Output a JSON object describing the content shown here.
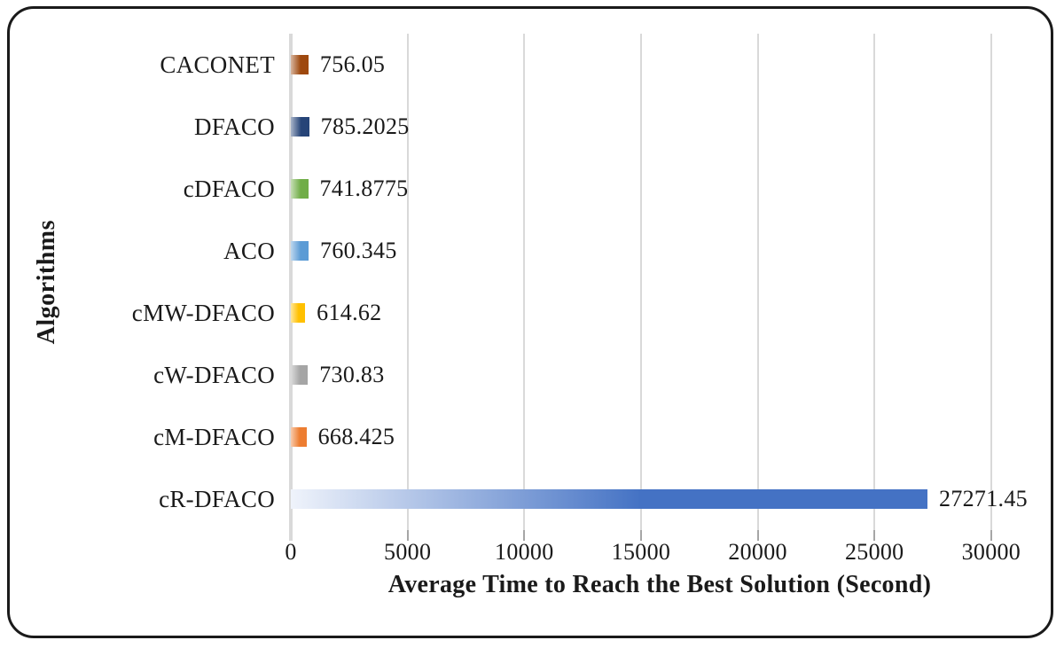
{
  "figure": {
    "frame_border_color": "#1a1a1a",
    "background_color": "#ffffff",
    "text_color": "#1a1a1a"
  },
  "chart_data": {
    "type": "bar",
    "orientation": "horizontal",
    "title": "",
    "xlabel": "Average Time to Reach the Best Solution (Second)",
    "ylabel": "Algorithms",
    "xlim": [
      0,
      31600
    ],
    "xticks": [
      "0",
      "5000",
      "10000",
      "15000",
      "20000",
      "25000",
      "30000"
    ],
    "xtick_values": [
      0,
      5000,
      10000,
      15000,
      20000,
      25000,
      30000
    ],
    "grid": true,
    "legend_position": "none",
    "categories": [
      "CACONET",
      "DFACO",
      "cDFACO",
      "ACO",
      "cMW-DFACO",
      "cW-DFACO",
      "cM-DFACO",
      "cR-DFACO"
    ],
    "values": [
      756.05,
      785.2025,
      741.8775,
      760.345,
      614.62,
      730.83,
      668.425,
      27271.45
    ],
    "value_labels": [
      "756.05",
      "785.2025",
      "741.8775",
      "760.345",
      "614.62",
      "730.83",
      "668.425",
      "27271.45"
    ],
    "bar_colors": [
      "#9E480E",
      "#264478",
      "#70AD47",
      "#5B9BD5",
      "#FFC000",
      "#A5A5A5",
      "#ED7D31",
      "#4472C4"
    ],
    "bar_colors_light": [
      "#D8B69F",
      "#A8B4C9",
      "#C6DEB5",
      "#BDD7EE",
      "#FFE699",
      "#DBDBDB",
      "#F8CBAD",
      "#EFF3FB"
    ],
    "gridline_color": "#D9D9D9",
    "tick_mark_color": "#A6A6A6"
  }
}
